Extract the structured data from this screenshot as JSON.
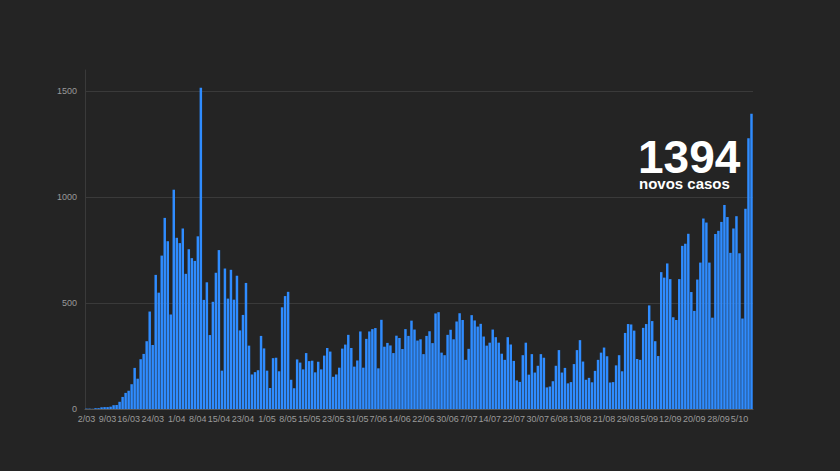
{
  "chart_data": {
    "type": "bar",
    "color": "#2f8cff",
    "grid": true,
    "ylim": [
      0,
      1600
    ],
    "yticks": [
      0,
      500,
      1000,
      1500
    ],
    "annotations": [
      {
        "text": "1394"
      },
      {
        "text": "novos casos"
      }
    ],
    "categories": [
      "2/03",
      null,
      null,
      null,
      null,
      null,
      null,
      "9/03",
      null,
      null,
      null,
      null,
      null,
      null,
      "16/03",
      null,
      null,
      null,
      null,
      null,
      null,
      null,
      "24/03",
      null,
      null,
      null,
      null,
      null,
      null,
      null,
      "1/04",
      null,
      null,
      null,
      null,
      null,
      null,
      "8/04",
      null,
      null,
      null,
      null,
      null,
      null,
      "15/04",
      null,
      null,
      null,
      null,
      null,
      null,
      null,
      "23/04",
      null,
      null,
      null,
      null,
      null,
      null,
      null,
      "1/05",
      null,
      null,
      null,
      null,
      null,
      null,
      "8/05",
      null,
      null,
      null,
      null,
      null,
      null,
      "15/05",
      null,
      null,
      null,
      null,
      null,
      null,
      null,
      "23/05",
      null,
      null,
      null,
      null,
      null,
      null,
      null,
      "31/05",
      null,
      null,
      null,
      null,
      null,
      null,
      "7/06",
      null,
      null,
      null,
      null,
      null,
      null,
      "14/06",
      null,
      null,
      null,
      null,
      null,
      null,
      null,
      "22/06",
      null,
      null,
      null,
      null,
      null,
      null,
      null,
      "30/06",
      null,
      null,
      null,
      null,
      null,
      null,
      "7/07",
      null,
      null,
      null,
      null,
      null,
      null,
      "14/07",
      null,
      null,
      null,
      null,
      null,
      null,
      null,
      "22/07",
      null,
      null,
      null,
      null,
      null,
      null,
      null,
      "30/07",
      null,
      null,
      null,
      null,
      null,
      null,
      "6/08",
      null,
      null,
      null,
      null,
      null,
      null,
      "13/08",
      null,
      null,
      null,
      null,
      null,
      null,
      null,
      "21/08",
      null,
      null,
      null,
      null,
      null,
      null,
      null,
      "29/08",
      null,
      null,
      null,
      null,
      null,
      null,
      "5/09",
      null,
      null,
      null,
      null,
      null,
      null,
      "12/09",
      null,
      null,
      null,
      null,
      null,
      null,
      null,
      "20/09",
      null,
      null,
      null,
      null,
      null,
      null,
      null,
      "28/09",
      null,
      null,
      null,
      null,
      null,
      null,
      "5/10",
      null,
      null,
      null,
      null
    ],
    "values": [
      2,
      2,
      1,
      4,
      4,
      8,
      9,
      9,
      11,
      18,
      19,
      34,
      57,
      76,
      86,
      117,
      194,
      143,
      235,
      260,
      320,
      460,
      302,
      633,
      549,
      724,
      902,
      792,
      446,
      1035,
      808,
      783,
      852,
      638,
      754,
      712,
      699,
      815,
      1516,
      515,
      598,
      349,
      506,
      643,
      750,
      181,
      663,
      521,
      657,
      516,
      629,
      371,
      444,
      595,
      299,
      163,
      174,
      183,
      345,
      286,
      181,
      99,
      240,
      242,
      178,
      480,
      533,
      553,
      138,
      98,
      234,
      219,
      187,
      264,
      226,
      228,
      173,
      223,
      187,
      252,
      288,
      271,
      152,
      163,
      195,
      285,
      304,
      350,
      288,
      200,
      229,
      366,
      195,
      331,
      366,
      377,
      382,
      192,
      421,
      294,
      312,
      300,
      264,
      346,
      335,
      283,
      377,
      345,
      417,
      375,
      323,
      329,
      259,
      345,
      367,
      311,
      451,
      457,
      266,
      254,
      350,
      374,
      329,
      413,
      452,
      420,
      232,
      284,
      443,
      418,
      389,
      402,
      342,
      299,
      313,
      375,
      339,
      313,
      261,
      232,
      339,
      305,
      227,
      135,
      128,
      254,
      313,
      162,
      259,
      172,
      204,
      259,
      242,
      102,
      106,
      131,
      204,
      278,
      172,
      194,
      121,
      127,
      212,
      278,
      325,
      224,
      138,
      147,
      126,
      180,
      232,
      266,
      290,
      249,
      125,
      127,
      206,
      254,
      178,
      359,
      401,
      399,
      370,
      236,
      232,
      383,
      401,
      489,
      415,
      320,
      250,
      646,
      620,
      687,
      613,
      433,
      420,
      613,
      770,
      780,
      827,
      552,
      463,
      611,
      691,
      899,
      880,
      691,
      431,
      826,
      841,
      883,
      963,
      906,
      737,
      852,
      910,
      735,
      427,
      945,
      1278,
      1394
    ]
  }
}
